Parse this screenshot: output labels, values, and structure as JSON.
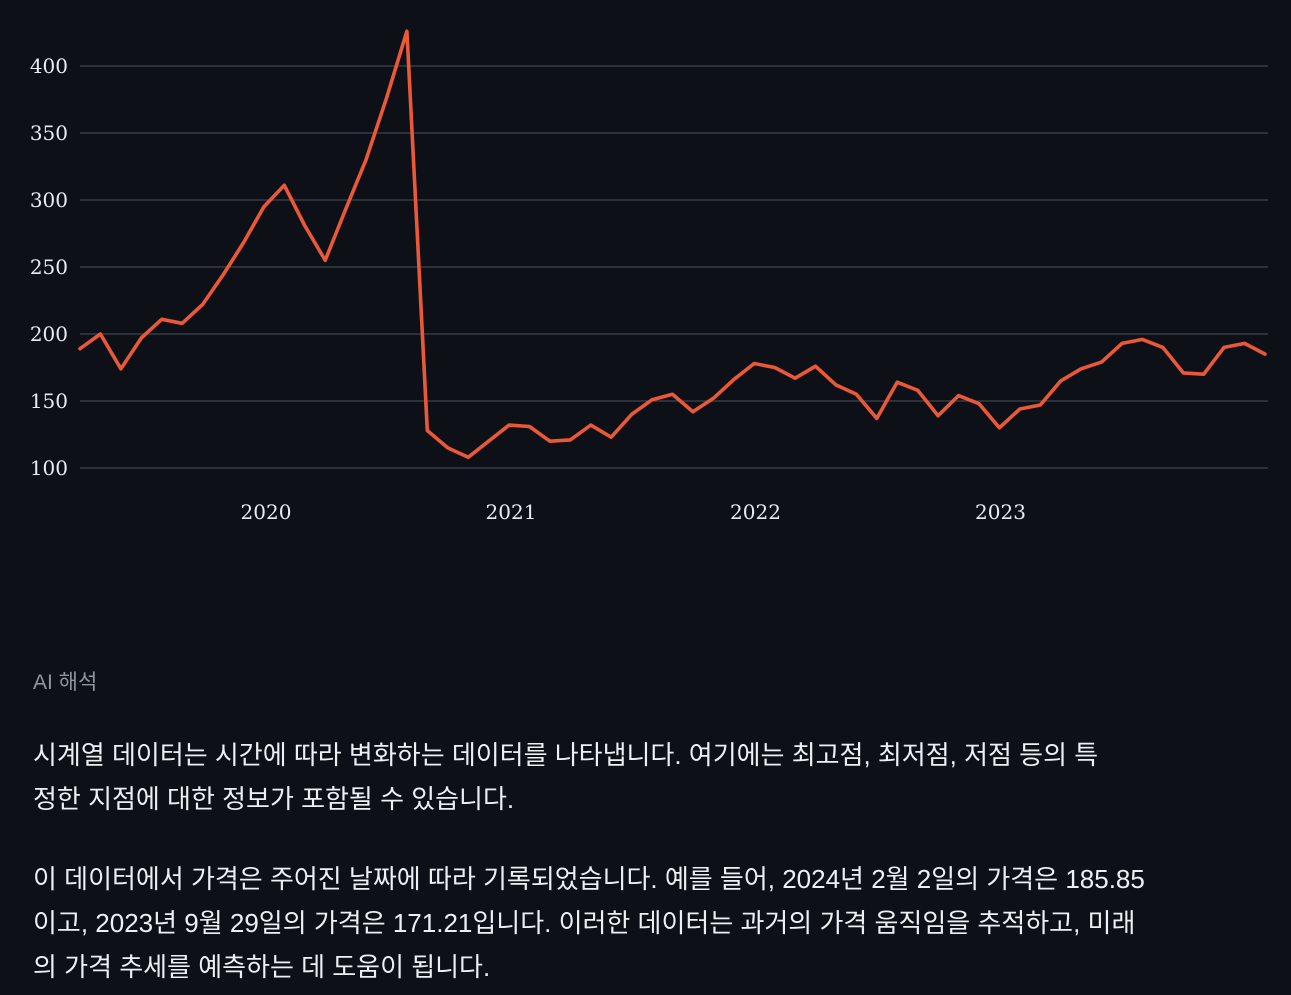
{
  "chart_data": {
    "type": "line",
    "title": "",
    "xlabel": "",
    "ylabel": "",
    "x_tick_labels": [
      "2020",
      "2021",
      "2022",
      "2023"
    ],
    "y_ticks": [
      100,
      150,
      200,
      250,
      300,
      350,
      400
    ],
    "ylim": [
      85,
      450
    ],
    "grid": true,
    "legend": "none",
    "line_color": "#ea5838",
    "values": [
      189,
      200,
      174,
      197,
      211,
      208,
      222,
      244,
      268,
      295,
      311,
      281,
      255,
      293,
      330,
      376,
      426,
      128,
      115,
      108,
      120,
      132,
      131,
      120,
      121,
      132,
      123,
      140,
      151,
      155,
      142,
      152,
      166,
      178,
      175,
      167,
      176,
      162,
      155,
      137,
      164,
      158,
      139,
      154,
      148,
      130,
      144,
      147,
      165,
      174,
      179,
      193,
      196,
      190,
      171,
      170,
      190,
      193,
      185
    ]
  },
  "ai_section": {
    "heading": "AI 해석",
    "paragraphs": [
      {
        "lines": [
          "시계열 데이터는 시간에 따라 변화하는 데이터를 나타냅니다. 여기에는 최고점, 최저점, 저점 등의 특",
          "정한 지점에 대한 정보가 포함될 수 있습니다."
        ]
      },
      {
        "lines": [
          "이 데이터에서 가격은 주어진 날짜에 따라 기록되었습니다. 예를 들어, 2024년 2월 2일의 가격은 185.85",
          "이고, 2023년 9월 29일의 가격은 171.21입니다. 이러한 데이터는 과거의 가격 움직임을 추적하고, 미래",
          "의 가격 추세를 예측하는 데 도움이 됩니다."
        ]
      }
    ],
    "example_values": {
      "price_2024_02_02": "185.85",
      "price_2023_09_29": "171.21"
    }
  },
  "colors": {
    "background": "#0d1117",
    "gridline": "#3f444c",
    "tick_text": "#e9ecef",
    "line": "#ea5838",
    "heading_text": "#8f959e",
    "body_text": "#edf0f3"
  }
}
